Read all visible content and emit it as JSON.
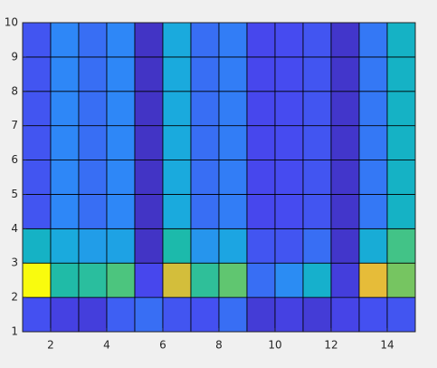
{
  "chart_data": {
    "type": "heatmap",
    "xlim": [
      1,
      15
    ],
    "ylim": [
      1,
      10
    ],
    "xticks": [
      2,
      4,
      6,
      8,
      10,
      12,
      14
    ],
    "yticks": [
      1,
      2,
      3,
      4,
      5,
      6,
      7,
      8,
      9,
      10
    ],
    "clim": [
      0,
      1
    ],
    "colormap": [
      "#3e26a8",
      "#4748f0",
      "#2e87f7",
      "#1aa9df",
      "#12b8b4",
      "#4ec67c",
      "#a8c43e",
      "#f5ba38",
      "#f9fb0e"
    ],
    "edge_color": "#000000",
    "z": [
      [
        0.14,
        0.1,
        0.09,
        0.17,
        0.2,
        0.15,
        0.14,
        0.2,
        0.08,
        0.1,
        0.08,
        0.11,
        0.14,
        0.15
      ],
      [
        1.0,
        0.53,
        0.55,
        0.62,
        0.12,
        0.82,
        0.56,
        0.65,
        0.2,
        0.27,
        0.43,
        0.09,
        0.85,
        0.68
      ],
      [
        0.45,
        0.38,
        0.33,
        0.35,
        0.05,
        0.52,
        0.3,
        0.36,
        0.15,
        0.15,
        0.2,
        0.06,
        0.4,
        0.6
      ],
      [
        0.15,
        0.25,
        0.2,
        0.25,
        0.05,
        0.38,
        0.2,
        0.23,
        0.12,
        0.13,
        0.15,
        0.06,
        0.22,
        0.45
      ],
      [
        0.15,
        0.25,
        0.2,
        0.25,
        0.05,
        0.38,
        0.2,
        0.23,
        0.12,
        0.13,
        0.15,
        0.06,
        0.22,
        0.45
      ],
      [
        0.15,
        0.25,
        0.2,
        0.25,
        0.05,
        0.38,
        0.2,
        0.23,
        0.12,
        0.13,
        0.15,
        0.06,
        0.22,
        0.45
      ],
      [
        0.15,
        0.25,
        0.2,
        0.25,
        0.05,
        0.38,
        0.2,
        0.23,
        0.12,
        0.13,
        0.15,
        0.06,
        0.22,
        0.45
      ],
      [
        0.15,
        0.25,
        0.2,
        0.25,
        0.05,
        0.38,
        0.2,
        0.23,
        0.12,
        0.13,
        0.15,
        0.06,
        0.22,
        0.45
      ],
      [
        0.15,
        0.25,
        0.2,
        0.25,
        0.05,
        0.38,
        0.2,
        0.23,
        0.12,
        0.13,
        0.15,
        0.06,
        0.22,
        0.45
      ]
    ]
  }
}
